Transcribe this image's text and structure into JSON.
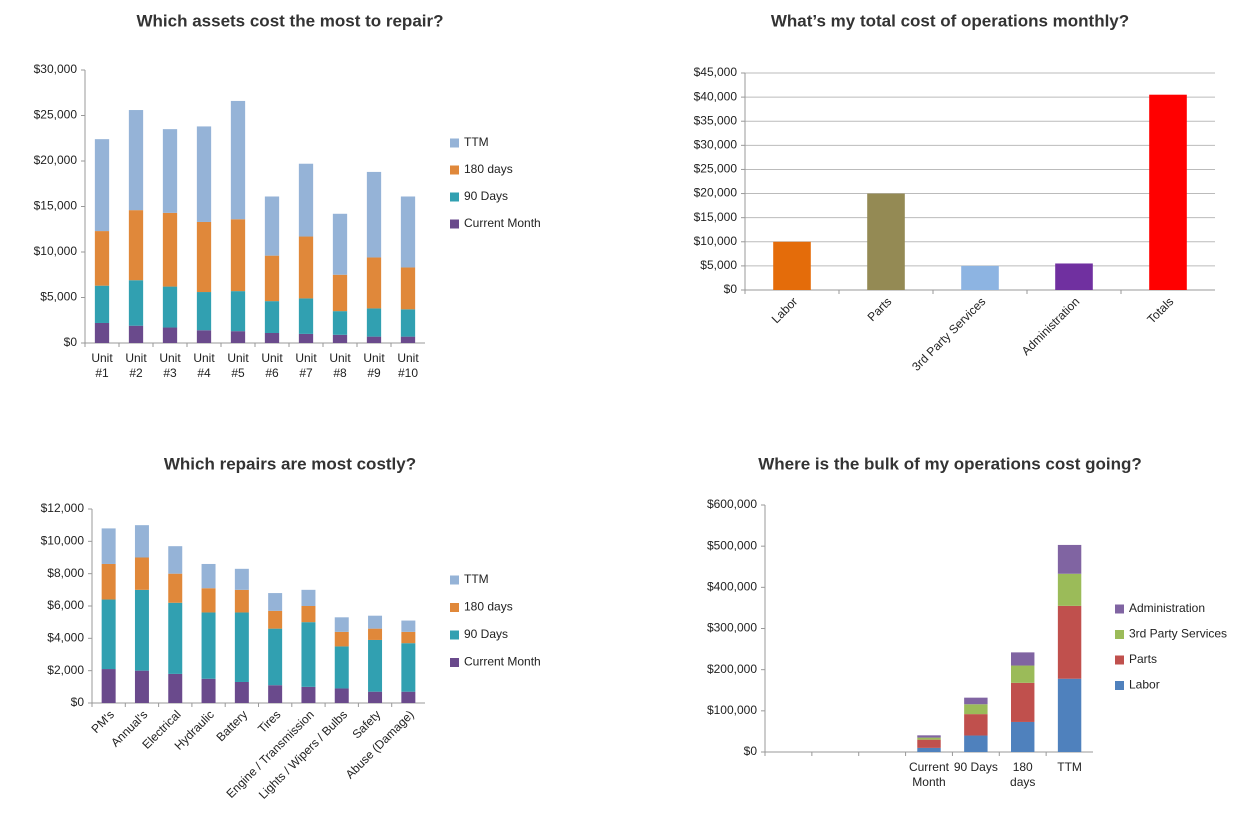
{
  "chart_data": [
    {
      "type": "stacked_bar",
      "title": "Which assets cost the most to repair?",
      "categories": [
        "Unit #1",
        "Unit #2",
        "Unit #3",
        "Unit #4",
        "Unit #5",
        "Unit #6",
        "Unit #7",
        "Unit #8",
        "Unit #9",
        "Unit #10"
      ],
      "series": [
        {
          "name": "Current Month",
          "color": "#6a4a8c",
          "values": [
            2200,
            1900,
            1700,
            1400,
            1300,
            1100,
            1000,
            900,
            700,
            700
          ]
        },
        {
          "name": "90 Days",
          "color": "#31a0b1",
          "values": [
            4100,
            5000,
            4500,
            4200,
            4400,
            3500,
            3900,
            2600,
            3100,
            3000
          ]
        },
        {
          "name": "180 days",
          "color": "#e0883a",
          "values": [
            6000,
            7700,
            8100,
            7700,
            7900,
            5000,
            6800,
            4000,
            5600,
            4600
          ]
        },
        {
          "name": "TTM",
          "color": "#95b3d7",
          "values": [
            10100,
            11000,
            9200,
            10500,
            13000,
            6500,
            8000,
            6700,
            9400,
            7800
          ]
        }
      ],
      "ylim": [
        0,
        30000
      ],
      "yticks": [
        {
          "value": 0,
          "label": "$0"
        },
        {
          "value": 5000,
          "label": "$5,000"
        },
        {
          "value": 10000,
          "label": "$10,000"
        },
        {
          "value": 15000,
          "label": "$15,000"
        },
        {
          "value": 20000,
          "label": "$20,000"
        },
        {
          "value": 25000,
          "label": "$25,000"
        },
        {
          "value": 30000,
          "label": "$30,000"
        }
      ],
      "grid": false,
      "legend": "right"
    },
    {
      "type": "bar",
      "title": "What’s my total cost of operations monthly?",
      "categories": [
        "Labor",
        "Parts",
        "3rd Party Services",
        "Administration",
        "Totals"
      ],
      "values": [
        10000,
        20000,
        5000,
        5500,
        40500
      ],
      "colors": [
        "#e46c0a",
        "#948a54",
        "#8db4e2",
        "#7030a0",
        "#ff0000"
      ],
      "ylim": [
        0,
        45000
      ],
      "yticks": [
        {
          "value": 0,
          "label": "$0"
        },
        {
          "value": 5000,
          "label": "$5,000"
        },
        {
          "value": 10000,
          "label": "$10,000"
        },
        {
          "value": 15000,
          "label": "$15,000"
        },
        {
          "value": 20000,
          "label": "$20,000"
        },
        {
          "value": 25000,
          "label": "$25,000"
        },
        {
          "value": 30000,
          "label": "$30,000"
        },
        {
          "value": 35000,
          "label": "$35,000"
        },
        {
          "value": 40000,
          "label": "$40,000"
        },
        {
          "value": 45000,
          "label": "$45,000"
        }
      ],
      "grid": true
    },
    {
      "type": "stacked_bar",
      "title": "Which repairs are most costly?",
      "categories": [
        "PM's",
        "Annual's",
        "Electrical",
        "Hydraulic",
        "Battery",
        "Tires",
        "Engine / Transmission",
        "Lights / Wipers / Bulbs",
        "Safety",
        "Abuse (Damage)"
      ],
      "series": [
        {
          "name": "Current Month",
          "color": "#6a4a8c",
          "values": [
            2100,
            2000,
            1800,
            1500,
            1300,
            1100,
            1000,
            900,
            700,
            700
          ]
        },
        {
          "name": "90 Days",
          "color": "#31a0b1",
          "values": [
            4300,
            5000,
            4400,
            4100,
            4300,
            3500,
            4000,
            2600,
            3200,
            3000
          ]
        },
        {
          "name": "180 days",
          "color": "#e0883a",
          "values": [
            2200,
            2000,
            1800,
            1500,
            1400,
            1100,
            1000,
            900,
            700,
            700
          ]
        },
        {
          "name": "TTM",
          "color": "#95b3d7",
          "values": [
            2200,
            2000,
            1700,
            1500,
            1300,
            1100,
            1000,
            900,
            800,
            700
          ]
        }
      ],
      "ylim": [
        0,
        12000
      ],
      "yticks": [
        {
          "value": 0,
          "label": "$0"
        },
        {
          "value": 2000,
          "label": "$2,000"
        },
        {
          "value": 4000,
          "label": "$4,000"
        },
        {
          "value": 6000,
          "label": "$6,000"
        },
        {
          "value": 8000,
          "label": "$8,000"
        },
        {
          "value": 10000,
          "label": "$10,000"
        },
        {
          "value": 12000,
          "label": "$12,000"
        }
      ],
      "grid": false,
      "legend": "right"
    },
    {
      "type": "stacked_bar",
      "title": "Where is the bulk of my operations cost going?",
      "categories": [
        null,
        null,
        null,
        "Current Month",
        "90 Days",
        "180 days",
        "TTM"
      ],
      "series": [
        {
          "name": "Labor",
          "color": "#4f81bd",
          "values": [
            null,
            null,
            null,
            10000,
            40000,
            73000,
            178000
          ]
        },
        {
          "name": "Parts",
          "color": "#c0504d",
          "values": [
            null,
            null,
            null,
            20000,
            52000,
            95000,
            177000
          ]
        },
        {
          "name": "3rd Party Services",
          "color": "#9bbb59",
          "values": [
            null,
            null,
            null,
            5000,
            24000,
            42000,
            78000
          ]
        },
        {
          "name": "Administration",
          "color": "#8064a2",
          "values": [
            null,
            null,
            null,
            5500,
            16000,
            32000,
            70000
          ]
        }
      ],
      "ylim": [
        0,
        600000
      ],
      "yticks": [
        {
          "value": 0,
          "label": "$0"
        },
        {
          "value": 100000,
          "label": "$100,000"
        },
        {
          "value": 200000,
          "label": "$200,000"
        },
        {
          "value": 300000,
          "label": "$300,000"
        },
        {
          "value": 400000,
          "label": "$400,000"
        },
        {
          "value": 500000,
          "label": "$500,000"
        },
        {
          "value": 600000,
          "label": "$600,000"
        }
      ],
      "grid": false,
      "legend": "right"
    }
  ]
}
